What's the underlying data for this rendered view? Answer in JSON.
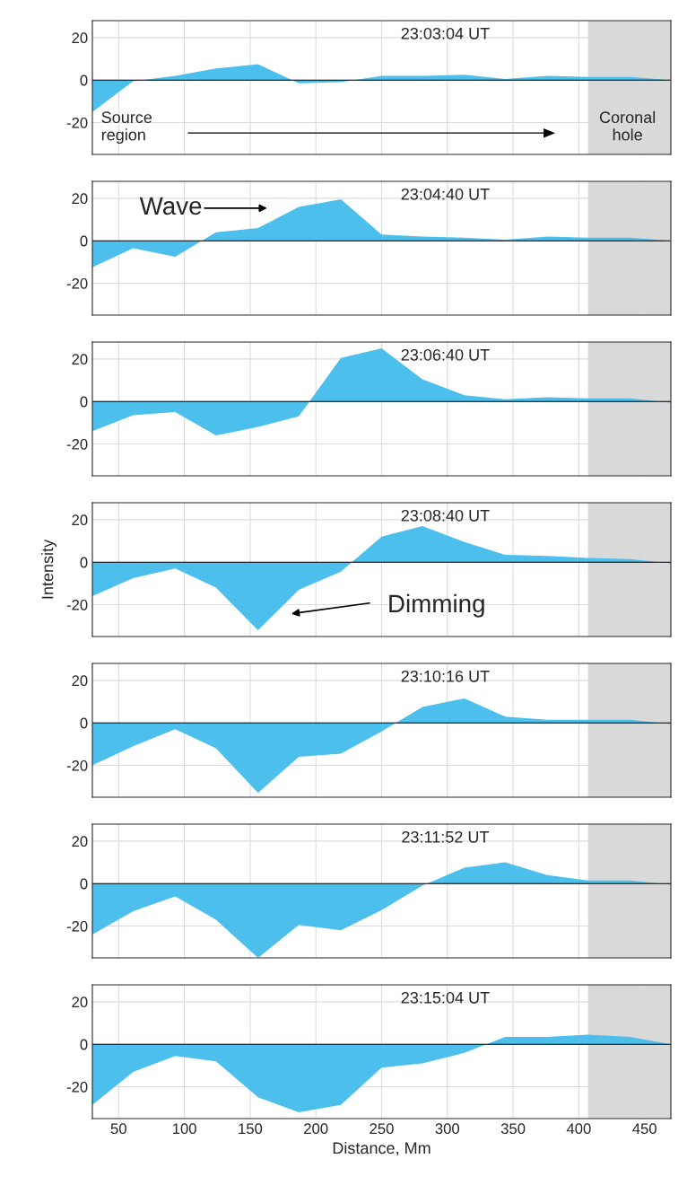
{
  "chart_data": [
    {
      "type": "area",
      "title": "23:03:04 UT",
      "x": [
        30,
        61,
        93,
        124,
        156,
        187,
        219,
        250,
        281,
        313,
        344,
        376,
        407,
        439,
        470
      ],
      "color": "#4dbfec",
      "values": [
        -15,
        -0.5,
        2,
        5.5,
        7.5,
        -1.5,
        -1,
        2,
        2,
        2.5,
        0.5,
        2,
        1.5,
        1.5,
        0
      ],
      "xlim": [
        30,
        470
      ],
      "ylim": [
        -35,
        28
      ],
      "xticks": [
        50,
        100,
        150,
        200,
        250,
        300,
        350,
        400,
        450
      ],
      "yticks": [
        -20,
        0,
        20
      ],
      "grid": true,
      "tick_labels": "y",
      "bands": [
        {
          "axis": "x",
          "from": 407,
          "to": 470,
          "color": "#d9d9d9"
        }
      ],
      "annotations": [
        "Source\nregion",
        "Coronal\nhole"
      ]
    },
    {
      "type": "area",
      "title": "23:04:40 UT",
      "x": [
        30,
        61,
        93,
        124,
        156,
        187,
        219,
        250,
        281,
        313,
        344,
        376,
        407,
        439,
        470
      ],
      "color": "#4dbfec",
      "values": [
        -12.5,
        -3.5,
        -7.5,
        4,
        6,
        16,
        19.5,
        3,
        2,
        1.5,
        0.5,
        2,
        1.5,
        1.5,
        0
      ],
      "xlim": [
        30,
        470
      ],
      "ylim": [
        -35,
        28
      ],
      "xticks": [
        50,
        100,
        150,
        200,
        250,
        300,
        350,
        400,
        450
      ],
      "yticks": [
        -20,
        0,
        20
      ],
      "grid": true,
      "tick_labels": "y",
      "bands": [
        {
          "axis": "x",
          "from": 407,
          "to": 470,
          "color": "#d9d9d9"
        }
      ],
      "annotations": [
        "Wave"
      ]
    },
    {
      "type": "area",
      "title": "23:06:40 UT",
      "x": [
        30,
        61,
        93,
        124,
        156,
        187,
        219,
        250,
        281,
        313,
        344,
        376,
        407,
        439,
        470
      ],
      "color": "#4dbfec",
      "values": [
        -14,
        -6.5,
        -5,
        -16,
        -12,
        -7,
        20.5,
        25,
        10.5,
        3,
        1,
        2,
        1.5,
        1.5,
        -0.5
      ],
      "xlim": [
        30,
        470
      ],
      "ylim": [
        -35,
        28
      ],
      "xticks": [
        50,
        100,
        150,
        200,
        250,
        300,
        350,
        400,
        450
      ],
      "yticks": [
        -20,
        0,
        20
      ],
      "grid": true,
      "tick_labels": "y",
      "bands": [
        {
          "axis": "x",
          "from": 407,
          "to": 470,
          "color": "#d9d9d9"
        }
      ]
    },
    {
      "type": "area",
      "title": "23:08:40 UT",
      "ylabel": "Intensity",
      "x": [
        30,
        61,
        93,
        124,
        156,
        187,
        219,
        250,
        281,
        313,
        344,
        376,
        407,
        439,
        470
      ],
      "color": "#4dbfec",
      "values": [
        -16,
        -7.5,
        -3,
        -12,
        -32,
        -13,
        -4.5,
        12,
        17,
        9.5,
        3.5,
        3,
        2,
        1.5,
        -0.5
      ],
      "xlim": [
        30,
        470
      ],
      "ylim": [
        -35,
        28
      ],
      "xticks": [
        50,
        100,
        150,
        200,
        250,
        300,
        350,
        400,
        450
      ],
      "yticks": [
        -20,
        0,
        20
      ],
      "grid": true,
      "tick_labels": "y",
      "bands": [
        {
          "axis": "x",
          "from": 407,
          "to": 470,
          "color": "#d9d9d9"
        }
      ],
      "annotations": [
        "Dimming"
      ]
    },
    {
      "type": "area",
      "title": "23:10:16 UT",
      "x": [
        30,
        61,
        93,
        124,
        156,
        187,
        219,
        250,
        281,
        313,
        344,
        376,
        407,
        439,
        470
      ],
      "color": "#4dbfec",
      "values": [
        -20,
        -11,
        -3,
        -12,
        -33,
        -16,
        -14.5,
        -4,
        7.5,
        11.5,
        3,
        1.5,
        1.5,
        1.5,
        -0.5
      ],
      "xlim": [
        30,
        470
      ],
      "ylim": [
        -35,
        28
      ],
      "xticks": [
        50,
        100,
        150,
        200,
        250,
        300,
        350,
        400,
        450
      ],
      "yticks": [
        -20,
        0,
        20
      ],
      "grid": true,
      "tick_labels": "y",
      "bands": [
        {
          "axis": "x",
          "from": 407,
          "to": 470,
          "color": "#d9d9d9"
        }
      ]
    },
    {
      "type": "area",
      "title": "23:11:52 UT",
      "x": [
        30,
        61,
        93,
        124,
        156,
        187,
        219,
        250,
        281,
        313,
        344,
        376,
        407,
        439,
        470
      ],
      "color": "#4dbfec",
      "values": [
        -24,
        -13,
        -6,
        -17,
        -35,
        -19.5,
        -22,
        -12.5,
        -1,
        7.5,
        10,
        4,
        1.5,
        1.5,
        -0.5
      ],
      "xlim": [
        30,
        470
      ],
      "ylim": [
        -35,
        28
      ],
      "xticks": [
        50,
        100,
        150,
        200,
        250,
        300,
        350,
        400,
        450
      ],
      "yticks": [
        -20,
        0,
        20
      ],
      "grid": true,
      "tick_labels": "y",
      "bands": [
        {
          "axis": "x",
          "from": 407,
          "to": 470,
          "color": "#d9d9d9"
        }
      ]
    },
    {
      "type": "area",
      "title": "23:15:04 UT",
      "xlabel": "Distance, Mm",
      "x": [
        30,
        61,
        93,
        124,
        156,
        187,
        219,
        250,
        281,
        313,
        344,
        376,
        407,
        439,
        470
      ],
      "color": "#4dbfec",
      "values": [
        -28.5,
        -13,
        -5.5,
        -8,
        -25,
        -32,
        -28.5,
        -11,
        -9,
        -4,
        3.5,
        3.5,
        4.5,
        3.5,
        0
      ],
      "xlim": [
        30,
        470
      ],
      "ylim": [
        -35,
        28
      ],
      "xticks": [
        50,
        100,
        150,
        200,
        250,
        300,
        350,
        400,
        450
      ],
      "yticks": [
        -20,
        0,
        20
      ],
      "grid": true,
      "bands": [
        {
          "axis": "x",
          "from": 407,
          "to": 470,
          "color": "#d9d9d9"
        }
      ]
    }
  ]
}
